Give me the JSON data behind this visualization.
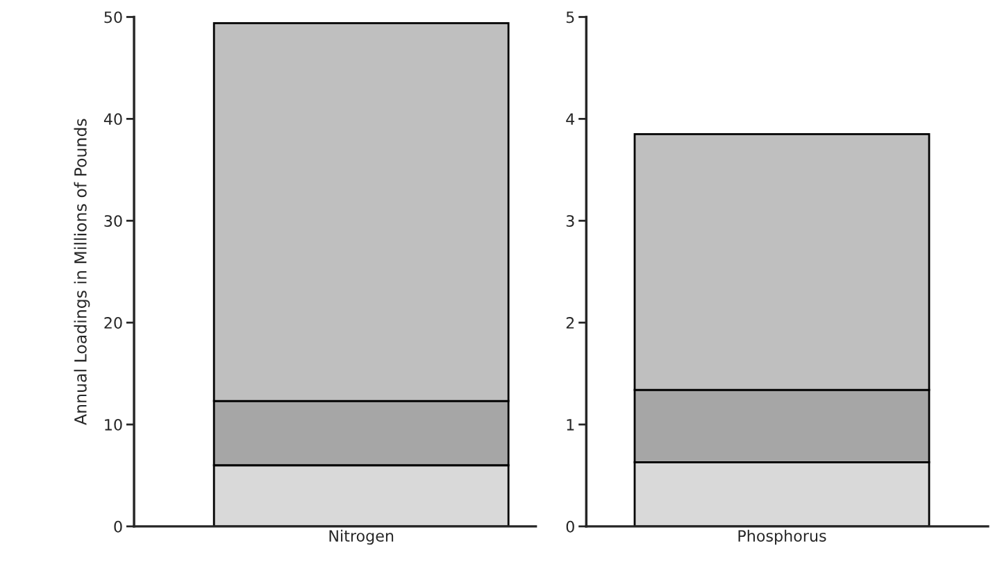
{
  "chart_data": {
    "type": "bar",
    "stacked": true,
    "ylabel": "Annual Loadings in Millions of Pounds",
    "categories": [
      "Nitrogen",
      "Phosphorus"
    ],
    "ylim": [
      0,
      50
    ],
    "yticks": [
      0,
      10,
      20,
      30,
      40,
      50
    ],
    "y2lim": [
      0,
      5
    ],
    "y2ticks": [
      0,
      1,
      2,
      3,
      4,
      5
    ],
    "series": [
      {
        "color": "#d9d9d9",
        "values": [
          6.0,
          null
        ]
      },
      {
        "color": "#a6a6a6",
        "values": [
          6.3,
          null
        ]
      },
      {
        "color": "#bfbfbf",
        "values": [
          37.1,
          null
        ]
      },
      {
        "color": "#d9d9d9",
        "axis": "y2",
        "values": [
          null,
          0.63
        ]
      },
      {
        "color": "#a6a6a6",
        "axis": "y2",
        "values": [
          null,
          0.71
        ]
      },
      {
        "color": "#bfbfbf",
        "axis": "y2",
        "values": [
          null,
          2.51
        ]
      }
    ]
  }
}
